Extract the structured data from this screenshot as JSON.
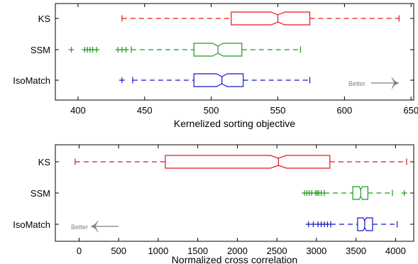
{
  "colors": {
    "KS": "#e8141b",
    "SSM": "#1a9a1a",
    "IsoMatch": "#1414cc",
    "better": "#808080"
  },
  "better_label": "Better",
  "chart_data": [
    {
      "type": "boxplot",
      "orientation": "horizontal",
      "xlabel": "Kernelized sorting objective",
      "xlim": [
        383,
        652
      ],
      "xticks": [
        400,
        450,
        500,
        550,
        600,
        650
      ],
      "better_direction": "right",
      "series": [
        {
          "name": "KS",
          "color_key": "KS",
          "whisker_low": 433,
          "q1": 515,
          "median": 550,
          "q3": 574,
          "whisker_high": 641,
          "notch_low": 545,
          "notch_high": 555,
          "outliers": []
        },
        {
          "name": "SSM",
          "color_key": "SSM",
          "whisker_low": 440,
          "q1": 487,
          "median": 505,
          "q3": 523,
          "whisker_high": 567,
          "notch_low": 501,
          "notch_high": 509,
          "outliers": [
            395,
            405,
            407,
            409,
            411,
            414,
            430,
            433,
            436
          ]
        },
        {
          "name": "IsoMatch",
          "color_key": "IsoMatch",
          "whisker_low": 441,
          "q1": 487,
          "median": 508,
          "q3": 524,
          "whisker_high": 574,
          "notch_low": 504,
          "notch_high": 512,
          "outliers": [
            433
          ]
        }
      ]
    },
    {
      "type": "boxplot",
      "orientation": "horizontal",
      "xlabel": "Normalized cross correlation",
      "xlim": [
        -300,
        4230
      ],
      "xticks": [
        0,
        500,
        1000,
        1500,
        2000,
        2500,
        3000,
        3500,
        4000
      ],
      "better_direction": "left",
      "series": [
        {
          "name": "KS",
          "color_key": "KS",
          "whisker_low": -50,
          "q1": 1090,
          "median": 2520,
          "q3": 3170,
          "whisker_high": 4140,
          "notch_low": 2420,
          "notch_high": 2620,
          "outliers": []
        },
        {
          "name": "SSM",
          "color_key": "SSM",
          "whisker_low": 3100,
          "q1": 3460,
          "median": 3560,
          "q3": 3650,
          "whisker_high": 3960,
          "notch_low": 3540,
          "notch_high": 3580,
          "outliers": [
            2850,
            2880,
            2910,
            2940,
            2990,
            3010,
            3030,
            3060,
            4110
          ]
        },
        {
          "name": "IsoMatch",
          "color_key": "IsoMatch",
          "whisker_low": 3180,
          "q1": 3520,
          "median": 3610,
          "q3": 3710,
          "whisker_high": 4020,
          "notch_low": 3590,
          "notch_high": 3630,
          "outliers": [
            2900,
            2960,
            3020,
            3060,
            3100,
            3140
          ]
        }
      ]
    }
  ]
}
